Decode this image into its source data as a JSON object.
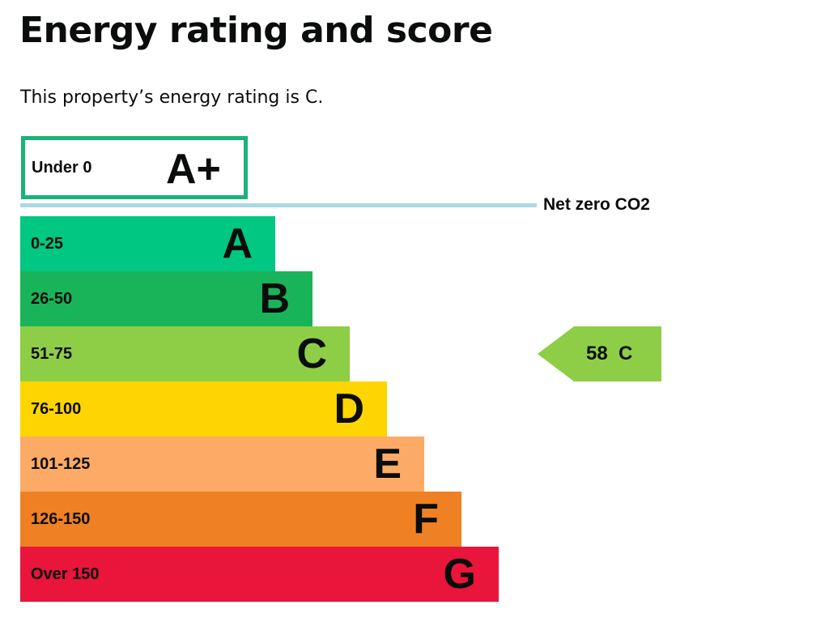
{
  "header": {
    "title": "Energy rating and score",
    "summary": "This property’s energy rating is C."
  },
  "chart_data": {
    "type": "bar",
    "title": "Energy rating and score",
    "top_band": {
      "range": "Under 0",
      "letter": "A+",
      "color": "#19b47a"
    },
    "net_zero_label": "Net zero CO2",
    "bands": [
      {
        "range": "0-25",
        "letter": "A",
        "color": "#00c781"
      },
      {
        "range": "26-50",
        "letter": "B",
        "color": "#19b459"
      },
      {
        "range": "51-75",
        "letter": "C",
        "color": "#8dce46"
      },
      {
        "range": "76-100",
        "letter": "D",
        "color": "#ffd500"
      },
      {
        "range": "101-125",
        "letter": "E",
        "color": "#fcaa65"
      },
      {
        "range": "126-150",
        "letter": "F",
        "color": "#ef8023"
      },
      {
        "range": "Over 150",
        "letter": "G",
        "color": "#e9153b"
      }
    ],
    "current": {
      "score": 58,
      "rating": "C",
      "label": "58  C",
      "color": "#8dce46"
    }
  }
}
